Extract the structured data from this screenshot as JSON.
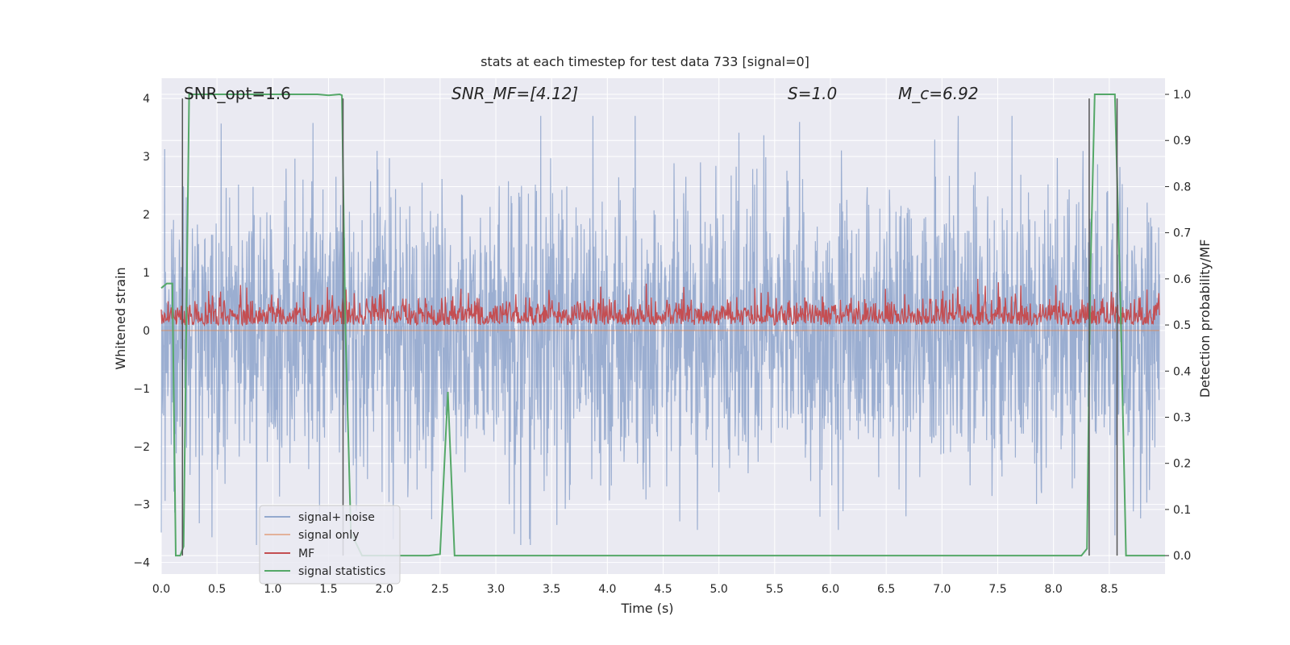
{
  "chart_data": {
    "type": "line",
    "title": "stats at each timestep for test data 733 [signal=0]",
    "xlabel": "Time (s)",
    "ylabel_left": "Whitened strain",
    "ylabel_right": "Detection probability/MF",
    "xlim": [
      0,
      9.0
    ],
    "ylim_left": [
      -4.2,
      4.35
    ],
    "ylim_right": [
      -0.04,
      1.035
    ],
    "x_ticks": [
      "0.0",
      "0.5",
      "1.0",
      "1.5",
      "2.0",
      "2.5",
      "3.0",
      "3.5",
      "4.0",
      "4.5",
      "5.0",
      "5.5",
      "6.0",
      "6.5",
      "7.0",
      "7.5",
      "8.0",
      "8.5"
    ],
    "y_ticks_left": [
      "−4",
      "−3",
      "−2",
      "−1",
      "0",
      "1",
      "2",
      "3",
      "4"
    ],
    "y_ticks_right": [
      "0.0",
      "0.1",
      "0.2",
      "0.3",
      "0.4",
      "0.5",
      "0.6",
      "0.7",
      "0.8",
      "0.9",
      "1.0"
    ],
    "grid": true,
    "legend_position": "lower-left",
    "annotations": [
      {
        "text": "SNR_opt=1.6",
        "x": 0.2,
        "y": 4.1
      },
      {
        "text": "SNR_MF=[4.12]",
        "x": 2.6,
        "y": 4.1
      },
      {
        "text": "S=1.0",
        "x": 5.6,
        "y": 4.1
      },
      {
        "text": "M_c=6.92",
        "x": 6.6,
        "y": 4.1
      }
    ],
    "series": [
      {
        "name": "signal+ noise",
        "axis": "left",
        "color": "#4c72b0",
        "description": "dense noisy whitened strain, roughly -3.7 to 3.7",
        "amplitude": 1.6
      },
      {
        "name": "signal only",
        "axis": "left",
        "color": "#dd8452",
        "values_constant": 0.0
      },
      {
        "name": "MF",
        "axis": "right",
        "color": "#c44e52",
        "range": [
          0.5,
          0.6
        ]
      },
      {
        "name": "signal statistics",
        "axis": "right",
        "color": "#55a868",
        "x": [
          0.0,
          0.05,
          0.1,
          0.13,
          0.17,
          0.2,
          0.25,
          0.3,
          0.5,
          1.0,
          1.4,
          1.5,
          1.6,
          1.62,
          1.65,
          1.7,
          1.8,
          2.0,
          2.4,
          2.5,
          2.57,
          2.63,
          2.7,
          3.0,
          4.0,
          5.0,
          6.0,
          7.0,
          8.0,
          8.25,
          8.3,
          8.33,
          8.37,
          8.45,
          8.55,
          8.6,
          8.65,
          9.0
        ],
        "y": [
          0.58,
          0.59,
          0.59,
          0.0,
          0.0,
          0.02,
          1.0,
          1.0,
          1.0,
          1.0,
          1.0,
          0.998,
          1.0,
          0.998,
          0.5,
          0.05,
          0.0,
          0.0,
          0.0,
          0.003,
          0.355,
          0.0,
          0.0,
          0.0,
          0.0,
          0.0,
          0.0,
          0.0,
          0.0,
          0.0,
          0.015,
          0.6,
          1.0,
          1.0,
          1.0,
          0.55,
          0.0,
          0.0
        ]
      }
    ],
    "vlines": [
      0.19,
      1.63,
      8.32,
      8.57
    ]
  }
}
